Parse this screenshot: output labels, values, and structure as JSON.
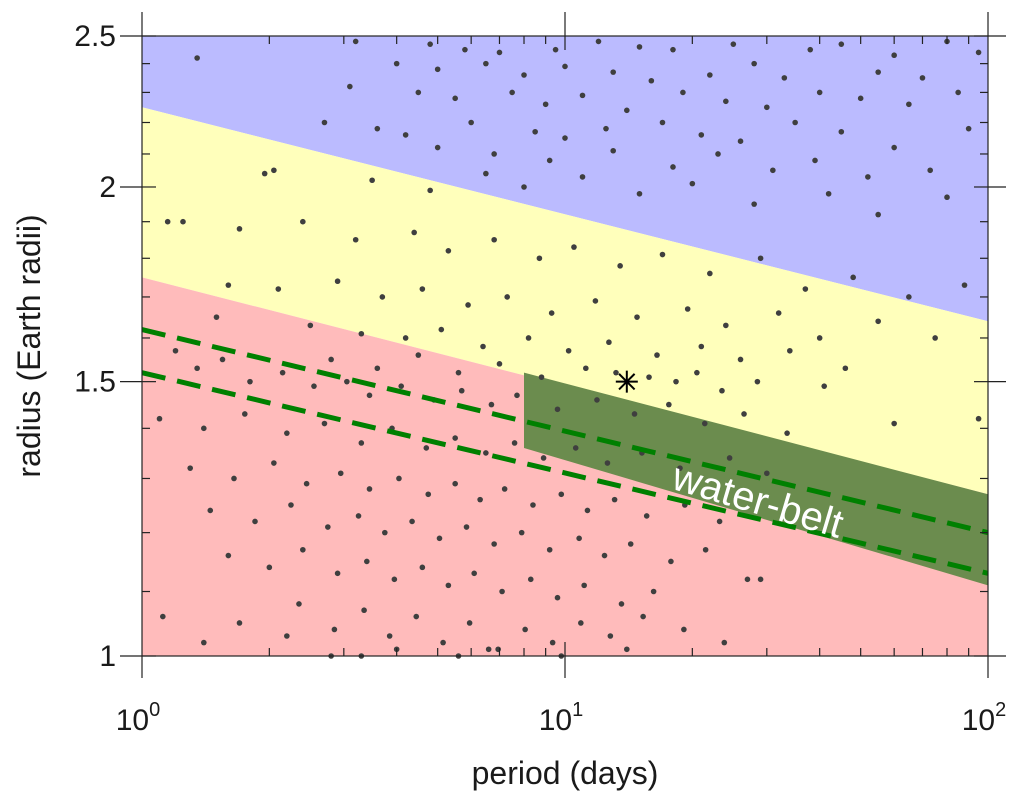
{
  "chart_data": {
    "type": "scatter",
    "xlabel": "period (days)",
    "ylabel": "radius (Earth radii)",
    "x_scale": "log",
    "y_scale": "log",
    "xlim": [
      1,
      100
    ],
    "ylim": [
      1,
      2.5
    ],
    "x_ticks": [
      {
        "value": 1,
        "base": "10",
        "exp": "0"
      },
      {
        "value": 10,
        "base": "10",
        "exp": "1"
      },
      {
        "value": 100,
        "base": "10",
        "exp": "2"
      }
    ],
    "y_ticks": [
      {
        "value": 1,
        "label": "1"
      },
      {
        "value": 1.5,
        "label": "1.5"
      },
      {
        "value": 2,
        "label": "2"
      },
      {
        "value": 2.5,
        "label": "2.5"
      }
    ],
    "grid": false,
    "regions": [
      {
        "name": "upper",
        "color": "#bbbbff",
        "lower_boundary": [
          [
            1,
            2.25
          ],
          [
            100,
            1.64
          ]
        ],
        "upper_boundary": "top"
      },
      {
        "name": "middle",
        "color": "#ffffbb",
        "lower_boundary": [
          [
            1,
            1.75
          ],
          [
            100,
            1.27
          ]
        ],
        "upper_boundary": [
          [
            1,
            2.25
          ],
          [
            100,
            1.64
          ]
        ]
      },
      {
        "name": "lower",
        "color": "#ffbbbb",
        "lower_boundary": "bottom",
        "upper_boundary": [
          [
            1,
            1.75
          ],
          [
            100,
            1.27
          ]
        ]
      }
    ],
    "water_belt": {
      "label": "water-belt",
      "color": "#6b8c4e",
      "polygon": [
        [
          8,
          1.52
        ],
        [
          8,
          1.36
        ],
        [
          100,
          1.11
        ],
        [
          100,
          1.27
        ]
      ]
    },
    "dashed_lines": [
      {
        "color": "#008000",
        "points": [
          [
            1,
            1.62
          ],
          [
            100,
            1.2
          ]
        ]
      },
      {
        "color": "#008000",
        "points": [
          [
            1,
            1.52
          ],
          [
            100,
            1.13
          ]
        ]
      }
    ],
    "marker": {
      "x": 14,
      "y": 1.5,
      "symbol": "asterisk"
    },
    "points": [
      [
        1.35,
        2.42
      ],
      [
        3.2,
        2.48
      ],
      [
        4.8,
        2.47
      ],
      [
        5.8,
        2.45
      ],
      [
        7,
        2.44
      ],
      [
        9.5,
        2.45
      ],
      [
        12,
        2.48
      ],
      [
        15,
        2.46
      ],
      [
        18,
        2.45
      ],
      [
        25,
        2.47
      ],
      [
        38,
        2.45
      ],
      [
        45,
        2.47
      ],
      [
        60,
        2.43
      ],
      [
        80,
        2.48
      ],
      [
        95,
        2.44
      ],
      [
        4,
        2.4
      ],
      [
        5,
        2.38
      ],
      [
        6.5,
        2.4
      ],
      [
        8,
        2.36
      ],
      [
        10,
        2.39
      ],
      [
        13,
        2.37
      ],
      [
        16,
        2.34
      ],
      [
        22,
        2.36
      ],
      [
        28,
        2.4
      ],
      [
        33,
        2.35
      ],
      [
        55,
        2.37
      ],
      [
        70,
        2.35
      ],
      [
        3.1,
        2.32
      ],
      [
        4.5,
        2.3
      ],
      [
        5.5,
        2.28
      ],
      [
        7.5,
        2.3
      ],
      [
        9,
        2.26
      ],
      [
        11,
        2.29
      ],
      [
        14,
        2.24
      ],
      [
        19,
        2.3
      ],
      [
        24,
        2.27
      ],
      [
        30,
        2.25
      ],
      [
        40,
        2.3
      ],
      [
        50,
        2.28
      ],
      [
        65,
        2.26
      ],
      [
        85,
        2.3
      ],
      [
        2.7,
        2.2
      ],
      [
        3.6,
        2.18
      ],
      [
        4.2,
        2.16
      ],
      [
        6,
        2.2
      ],
      [
        8.5,
        2.17
      ],
      [
        10,
        2.15
      ],
      [
        12.5,
        2.18
      ],
      [
        17,
        2.2
      ],
      [
        21,
        2.16
      ],
      [
        26,
        2.14
      ],
      [
        35,
        2.2
      ],
      [
        45,
        2.17
      ],
      [
        60,
        2.12
      ],
      [
        90,
        2.18
      ],
      [
        5,
        2.12
      ],
      [
        6.8,
        2.1
      ],
      [
        9.2,
        2.08
      ],
      [
        13,
        2.11
      ],
      [
        18,
        2.06
      ],
      [
        23,
        2.1
      ],
      [
        31,
        2.05
      ],
      [
        39,
        2.08
      ],
      [
        52,
        2.03
      ],
      [
        73,
        2.05
      ],
      [
        1.95,
        2.04
      ],
      [
        2.05,
        2.05
      ],
      [
        3.5,
        2.02
      ],
      [
        4.8,
        1.99
      ],
      [
        6.5,
        2.04
      ],
      [
        8,
        2.0
      ],
      [
        11,
        2.03
      ],
      [
        15,
        1.98
      ],
      [
        20,
        2.01
      ],
      [
        28,
        1.95
      ],
      [
        42,
        1.98
      ],
      [
        55,
        1.92
      ],
      [
        80,
        1.97
      ],
      [
        1.15,
        1.9
      ],
      [
        1.25,
        1.9
      ],
      [
        1.7,
        1.88
      ],
      [
        2.4,
        1.9
      ],
      [
        3.2,
        1.85
      ],
      [
        4.4,
        1.87
      ],
      [
        5.3,
        1.82
      ],
      [
        6.8,
        1.85
      ],
      [
        8.7,
        1.8
      ],
      [
        10.5,
        1.83
      ],
      [
        13.5,
        1.78
      ],
      [
        17,
        1.81
      ],
      [
        22,
        1.76
      ],
      [
        29,
        1.8
      ],
      [
        37,
        1.72
      ],
      [
        48,
        1.75
      ],
      [
        65,
        1.7
      ],
      [
        88,
        1.73
      ],
      [
        1.6,
        1.73
      ],
      [
        2.1,
        1.72
      ],
      [
        2.9,
        1.74
      ],
      [
        3.7,
        1.7
      ],
      [
        4.6,
        1.72
      ],
      [
        5.9,
        1.68
      ],
      [
        7.3,
        1.7
      ],
      [
        9.3,
        1.66
      ],
      [
        11.8,
        1.69
      ],
      [
        14.8,
        1.65
      ],
      [
        19.5,
        1.67
      ],
      [
        24,
        1.63
      ],
      [
        32,
        1.66
      ],
      [
        40,
        1.6
      ],
      [
        55,
        1.64
      ],
      [
        75,
        1.6
      ],
      [
        1.5,
        1.65
      ],
      [
        2.5,
        1.63
      ],
      [
        3.3,
        1.61
      ],
      [
        4.2,
        1.6
      ],
      [
        5.1,
        1.62
      ],
      [
        6.4,
        1.58
      ],
      [
        8.2,
        1.6
      ],
      [
        10.2,
        1.57
      ],
      [
        12.7,
        1.59
      ],
      [
        16.5,
        1.56
      ],
      [
        21,
        1.58
      ],
      [
        26,
        1.55
      ],
      [
        34,
        1.57
      ],
      [
        46,
        1.53
      ],
      [
        2.8,
        1.55
      ],
      [
        3.6,
        1.53
      ],
      [
        4.5,
        1.56
      ],
      [
        5.6,
        1.52
      ],
      [
        7,
        1.54
      ],
      [
        8.8,
        1.51
      ],
      [
        11.2,
        1.53
      ],
      [
        13.2,
        1.52
      ],
      [
        15.8,
        1.51
      ],
      [
        18.3,
        1.5
      ],
      [
        20.5,
        1.52
      ],
      [
        23.5,
        1.48
      ],
      [
        28.5,
        1.5
      ],
      [
        41,
        1.49
      ],
      [
        95,
        1.42
      ],
      [
        1.2,
        1.57
      ],
      [
        1.35,
        1.53
      ],
      [
        1.55,
        1.55
      ],
      [
        1.8,
        1.5
      ],
      [
        2.15,
        1.52
      ],
      [
        2.55,
        1.49
      ],
      [
        3.05,
        1.5
      ],
      [
        3.45,
        1.47
      ],
      [
        4.1,
        1.49
      ],
      [
        4.9,
        1.46
      ],
      [
        5.7,
        1.48
      ],
      [
        6.7,
        1.45
      ],
      [
        7.7,
        1.47
      ],
      [
        9.6,
        1.44
      ],
      [
        11.9,
        1.46
      ],
      [
        14.6,
        1.43
      ],
      [
        17.6,
        1.45
      ],
      [
        21.4,
        1.41
      ],
      [
        26.5,
        1.43
      ],
      [
        33.5,
        1.39
      ],
      [
        60,
        1.41
      ],
      [
        1.1,
        1.42
      ],
      [
        1.4,
        1.4
      ],
      [
        1.75,
        1.43
      ],
      [
        2.2,
        1.39
      ],
      [
        2.7,
        1.41
      ],
      [
        3.3,
        1.37
      ],
      [
        3.9,
        1.4
      ],
      [
        4.7,
        1.36
      ],
      [
        5.5,
        1.38
      ],
      [
        6.5,
        1.35
      ],
      [
        7.6,
        1.37
      ],
      [
        8.9,
        1.34
      ],
      [
        10.6,
        1.36
      ],
      [
        12.6,
        1.33
      ],
      [
        15.2,
        1.35
      ],
      [
        18.7,
        1.32
      ],
      [
        24.5,
        1.34
      ],
      [
        30,
        1.31
      ],
      [
        1.3,
        1.32
      ],
      [
        1.65,
        1.3
      ],
      [
        2.05,
        1.33
      ],
      [
        2.45,
        1.29
      ],
      [
        2.95,
        1.31
      ],
      [
        3.45,
        1.28
      ],
      [
        4.05,
        1.3
      ],
      [
        4.75,
        1.27
      ],
      [
        5.5,
        1.29
      ],
      [
        6.3,
        1.26
      ],
      [
        7.2,
        1.28
      ],
      [
        8.4,
        1.25
      ],
      [
        9.8,
        1.27
      ],
      [
        11.3,
        1.24
      ],
      [
        13.1,
        1.26
      ],
      [
        15.6,
        1.23
      ],
      [
        19.2,
        1.25
      ],
      [
        23.2,
        1.22
      ],
      [
        1.45,
        1.24
      ],
      [
        1.85,
        1.22
      ],
      [
        2.25,
        1.25
      ],
      [
        2.75,
        1.21
      ],
      [
        3.25,
        1.23
      ],
      [
        3.75,
        1.2
      ],
      [
        4.35,
        1.22
      ],
      [
        5.05,
        1.19
      ],
      [
        5.85,
        1.21
      ],
      [
        6.8,
        1.18
      ],
      [
        7.9,
        1.2
      ],
      [
        9.2,
        1.17
      ],
      [
        10.8,
        1.19
      ],
      [
        12.4,
        1.16
      ],
      [
        14.3,
        1.18
      ],
      [
        17.8,
        1.15
      ],
      [
        21.5,
        1.17
      ],
      [
        1.6,
        1.16
      ],
      [
        2.0,
        1.14
      ],
      [
        2.4,
        1.17
      ],
      [
        2.9,
        1.13
      ],
      [
        3.4,
        1.15
      ],
      [
        3.95,
        1.12
      ],
      [
        4.6,
        1.14
      ],
      [
        5.3,
        1.11
      ],
      [
        6.1,
        1.13
      ],
      [
        7.1,
        1.1
      ],
      [
        8.3,
        1.12
      ],
      [
        9.6,
        1.09
      ],
      [
        11.1,
        1.11
      ],
      [
        13.6,
        1.08
      ],
      [
        16.2,
        1.1
      ],
      [
        27,
        1.12
      ],
      [
        29,
        1.12
      ],
      [
        1.12,
        1.06
      ],
      [
        1.7,
        1.05
      ],
      [
        2.35,
        1.08
      ],
      [
        2.85,
        1.04
      ],
      [
        3.35,
        1.07
      ],
      [
        3.85,
        1.03
      ],
      [
        4.45,
        1.06
      ],
      [
        5.15,
        1.02
      ],
      [
        5.95,
        1.05
      ],
      [
        6.95,
        1.01
      ],
      [
        8.05,
        1.04
      ],
      [
        9.35,
        1.02
      ],
      [
        10.9,
        1.05
      ],
      [
        12.8,
        1.03
      ],
      [
        15.3,
        1.06
      ],
      [
        19.1,
        1.04
      ],
      [
        23.8,
        1.02
      ],
      [
        1.4,
        1.02
      ],
      [
        2.2,
        1.03
      ],
      [
        2.8,
        1.0
      ],
      [
        3.3,
        1.0
      ],
      [
        4.0,
        1.01
      ],
      [
        5.6,
        1.0
      ],
      [
        6.6,
        1.01
      ],
      [
        9.8,
        1.0
      ],
      [
        14,
        1.01
      ]
    ]
  }
}
